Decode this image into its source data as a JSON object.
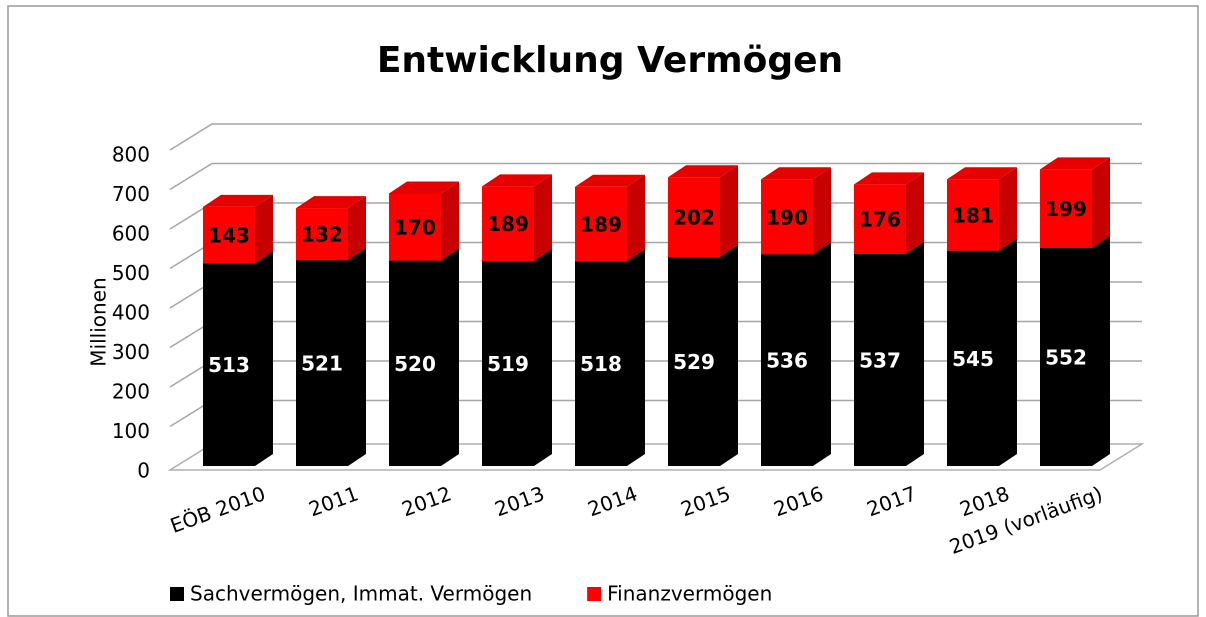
{
  "chart_data": {
    "type": "bar3d_stacked",
    "title": "Entwicklung Vermögen",
    "y_label": "Millionen",
    "categories": [
      "EÖB 2010",
      "2011",
      "2012",
      "2013",
      "2014",
      "2015",
      "2016",
      "2017",
      "2018",
      "2019 (vorläufig)"
    ],
    "series": [
      {
        "name": "Sachvermögen, Immat. Vermögen",
        "color": "#000000",
        "values": [
          513,
          521,
          520,
          519,
          518,
          529,
          536,
          537,
          545,
          552
        ]
      },
      {
        "name": "Finanzvermögen",
        "color": "#ff0000",
        "values": [
          143,
          132,
          170,
          189,
          189,
          202,
          190,
          176,
          181,
          199
        ]
      }
    ],
    "ylim": [
      0,
      800
    ],
    "yticks": [
      0,
      100,
      200,
      300,
      400,
      500,
      600,
      700,
      800
    ],
    "grid": true,
    "legend": "bottom"
  }
}
